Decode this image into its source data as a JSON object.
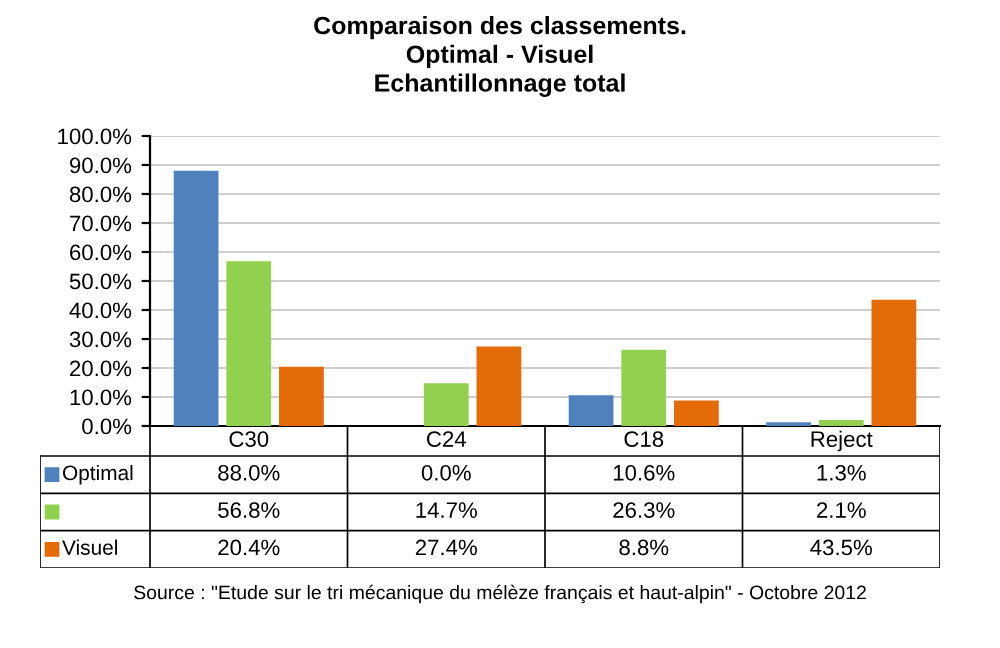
{
  "chart_data": {
    "type": "bar",
    "title": "Comparaison des classements.\nOptimal - Visuel\nEchantillonnage total",
    "categories": [
      "C30",
      "C24",
      "C18",
      "Reject"
    ],
    "series": [
      {
        "name": "Optimal",
        "color": "#4f81bd",
        "values": [
          88.0,
          0.0,
          10.6,
          1.3
        ],
        "value_labels": [
          "88.0%",
          "0.0%",
          "10.6%",
          "1.3%"
        ]
      },
      {
        "color": "#92d050",
        "values": [
          56.8,
          14.7,
          26.3,
          2.1
        ],
        "value_labels": [
          "56.8%",
          "14.7%",
          "26.3%",
          "2.1%"
        ]
      },
      {
        "name": "Visuel",
        "color": "#e36c09",
        "values": [
          20.4,
          27.4,
          8.8,
          43.5
        ],
        "value_labels": [
          "20.4%",
          "27.4%",
          "8.8%",
          "43.5%"
        ]
      }
    ],
    "ylim": [
      0,
      100
    ],
    "yticks": [
      {
        "value": 0,
        "label": "0.0%"
      },
      {
        "value": 10,
        "label": "10.0%"
      },
      {
        "value": 20,
        "label": "20.0%"
      },
      {
        "value": 30,
        "label": "30.0%"
      },
      {
        "value": 40,
        "label": "40.0%"
      },
      {
        "value": 50,
        "label": "50.0%"
      },
      {
        "value": 60,
        "label": "60.0%"
      },
      {
        "value": 70,
        "label": "70.0%"
      },
      {
        "value": 80,
        "label": "80.0%"
      },
      {
        "value": 90,
        "label": "90.0%"
      },
      {
        "value": 100,
        "label": "100.0%"
      }
    ],
    "grid": "y",
    "legend": "bottom left",
    "annotations": [
      "Source : \"Etude sur le tri mécanique du mélèze français et haut-alpin\" - Octobre 2012"
    ]
  }
}
